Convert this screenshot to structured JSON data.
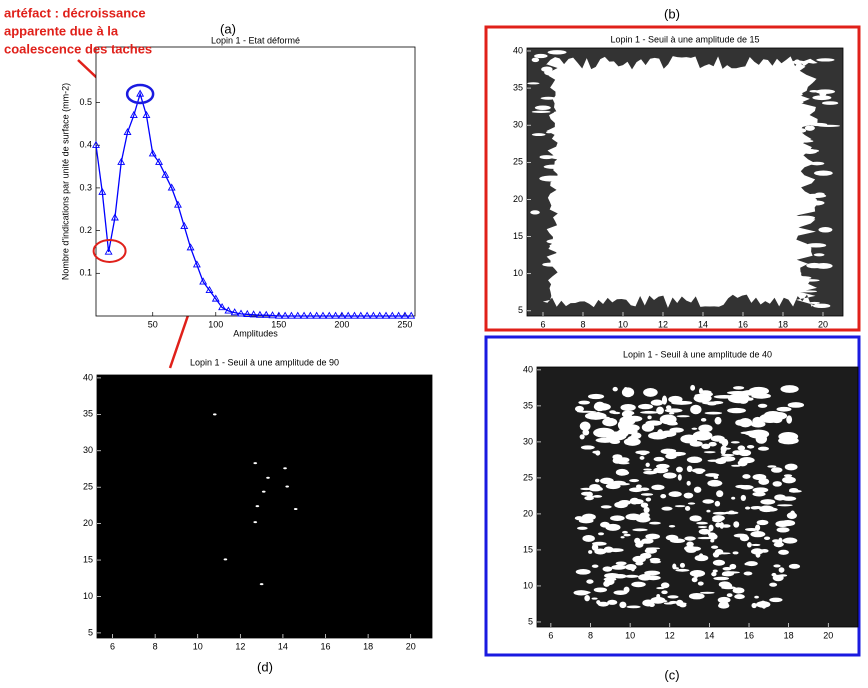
{
  "chart_data": [
    {
      "type": "line",
      "label": "(a)",
      "title": "Lopin 1 - Etat déformé",
      "x_label": "Amplitudes",
      "y_label": "Nombre d'indications par unité de surface (mm-2)",
      "annotations": [
        "artéfact : décroissance",
        "apparente due à la",
        "coalescence des taches"
      ],
      "color": "#0000ff",
      "x": [
        5,
        10,
        15,
        20,
        25,
        30,
        35,
        40,
        45,
        50,
        55,
        60,
        65,
        70,
        75,
        80,
        85,
        90,
        95,
        100,
        105,
        110,
        115,
        120,
        125,
        130,
        135,
        140,
        145,
        150,
        155,
        160,
        165,
        170,
        175,
        180,
        185,
        190,
        195,
        200,
        205,
        210,
        215,
        220,
        225,
        230,
        235,
        240,
        245,
        250,
        255
      ],
      "values": [
        0.4,
        0.29,
        0.15,
        0.23,
        0.36,
        0.43,
        0.47,
        0.52,
        0.47,
        0.38,
        0.36,
        0.33,
        0.3,
        0.26,
        0.21,
        0.16,
        0.12,
        0.08,
        0.06,
        0.04,
        0.02,
        0.012,
        0.008,
        0.005,
        0.004,
        0.003,
        0.002,
        0.002,
        0.001,
        0,
        0,
        0,
        0,
        0,
        0,
        0,
        0,
        0,
        0,
        0,
        0,
        0,
        0,
        0,
        0,
        0,
        0,
        0,
        0,
        0,
        0
      ],
      "xlim": [
        5,
        258
      ],
      "ylim": [
        0,
        0.63
      ],
      "xticks": [
        50,
        100,
        150,
        200,
        250
      ],
      "yticks": [
        0.1,
        0.2,
        0.3,
        0.4,
        0.5
      ]
    },
    {
      "type": "image",
      "label": "(b)",
      "title": "Lopin 1 - Seuil à une amplitude de 15",
      "frame": "#e0201a",
      "xlim": [
        5.2,
        21
      ],
      "ylim": [
        4.3,
        40.4
      ],
      "xticks": [
        6,
        8,
        10,
        12,
        14,
        16,
        18,
        20
      ],
      "yticks": [
        5,
        10,
        15,
        20,
        25,
        30,
        35,
        40
      ]
    },
    {
      "type": "image",
      "label": "(c)",
      "title": "Lopin 1 - Seuil à une amplitude de 40",
      "frame": "#1a1ae0",
      "xlim": [
        5.3,
        21.5
      ],
      "ylim": [
        4.3,
        40.4
      ],
      "xticks": [
        6,
        8,
        10,
        12,
        14,
        16,
        18,
        20
      ],
      "yticks": [
        5,
        10,
        15,
        20,
        25,
        30,
        35,
        40
      ]
    },
    {
      "type": "image",
      "label": "(d)",
      "title": "Lopin 1 - Seuil à une amplitude de 90",
      "xlim": [
        5.27,
        21
      ],
      "ylim": [
        4.3,
        40.4
      ],
      "xticks": [
        6,
        8,
        10,
        12,
        14,
        16,
        18,
        20
      ],
      "yticks": [
        5,
        10,
        15,
        20,
        25,
        30,
        35,
        40
      ]
    }
  ]
}
